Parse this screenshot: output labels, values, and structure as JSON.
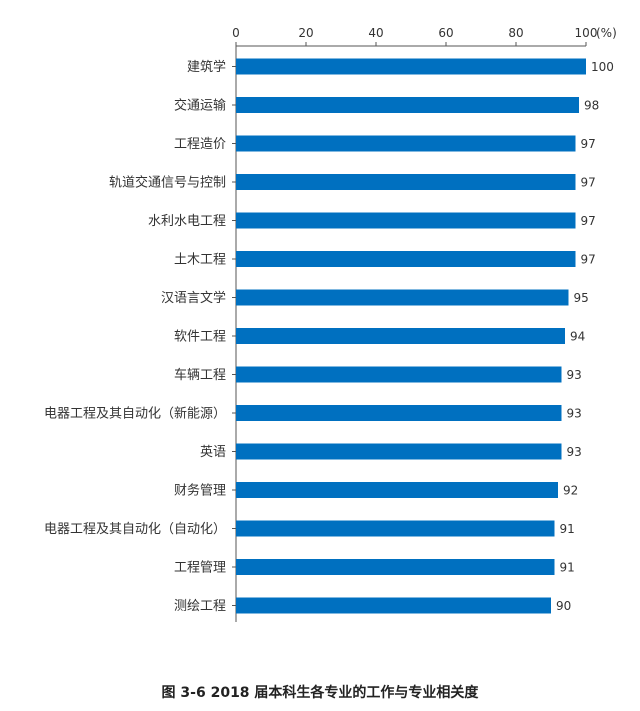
{
  "chart_data": {
    "type": "bar",
    "orientation": "horizontal",
    "categories": [
      "建筑学",
      "交通运输",
      "工程造价",
      "轨道交通信号与控制",
      "水利水电工程",
      "土木工程",
      "汉语言文学",
      "软件工程",
      "车辆工程",
      "电器工程及其自动化（新能源）",
      "英语",
      "财务管理",
      "电器工程及其自动化（自动化）",
      "工程管理",
      "测绘工程"
    ],
    "values": [
      100,
      98,
      97,
      97,
      97,
      97,
      95,
      94,
      93,
      93,
      93,
      92,
      91,
      91,
      90
    ],
    "xlim": [
      0,
      100
    ],
    "ticks": [
      0,
      20,
      40,
      60,
      80,
      100
    ],
    "unit_label": "(%)",
    "bar_color": "#0070C0",
    "axis_position": "top",
    "grid": false,
    "legend": "none"
  },
  "caption": "图 3-6  2018 届本科生各专业的工作与专业相关度"
}
